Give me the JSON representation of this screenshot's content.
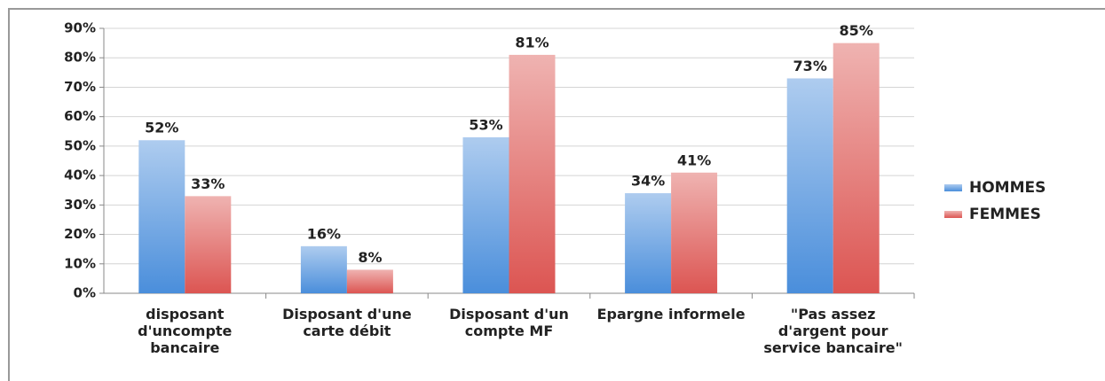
{
  "chart_data": {
    "type": "bar",
    "categories": [
      "disposant d'uncompte bancaire",
      "Disposant d'une carte débit",
      "Disposant d'un compte MF",
      "Epargne informele",
      "\"Pas assez d'argent pour service bancaire\""
    ],
    "series": [
      {
        "name": "HOMMES",
        "color": "#4a8edb",
        "values": [
          52,
          16,
          53,
          34,
          73
        ],
        "value_labels": [
          "52%",
          "16%",
          "53%",
          "34%",
          "73%"
        ]
      },
      {
        "name": "FEMMES",
        "color": "#dc5552",
        "values": [
          33,
          8,
          81,
          41,
          85
        ],
        "value_labels": [
          "33%",
          "8%",
          "81%",
          "41%",
          "85%"
        ]
      }
    ],
    "ylim": [
      0,
      90
    ],
    "yticks": [
      {
        "value": 0,
        "label": "0%"
      },
      {
        "value": 10,
        "label": "10%"
      },
      {
        "value": 20,
        "label": "20%"
      },
      {
        "value": 30,
        "label": "30%"
      },
      {
        "value": 40,
        "label": "40%"
      },
      {
        "value": 50,
        "label": "50%"
      },
      {
        "value": 60,
        "label": "60%"
      },
      {
        "value": 70,
        "label": "70%"
      },
      {
        "value": 80,
        "label": "80%"
      },
      {
        "value": 90,
        "label": "90%"
      }
    ],
    "grid": true,
    "legend": "right"
  }
}
